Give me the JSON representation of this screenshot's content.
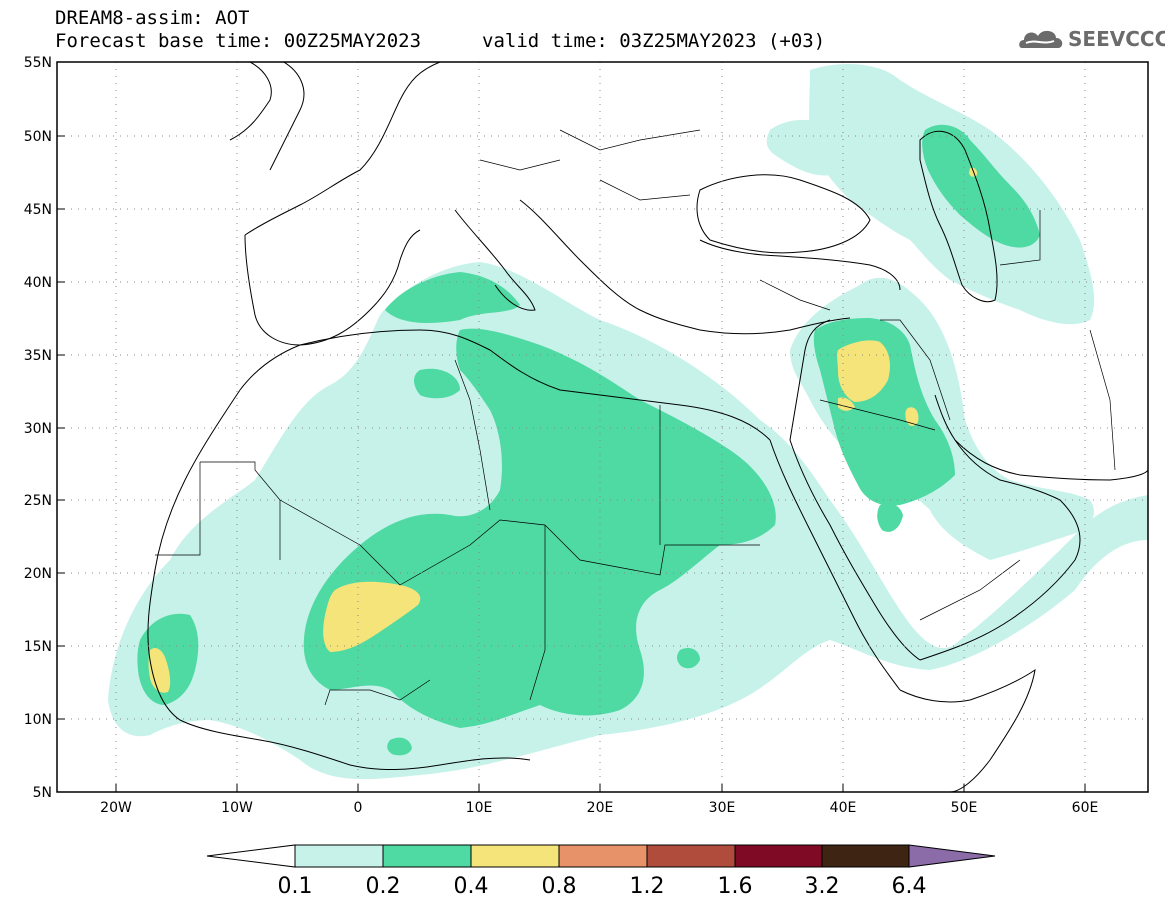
{
  "header": {
    "title": "DREAM8-assim: AOT",
    "base_time": "Forecast base time: 00Z25MAY2023",
    "valid_time": "valid time: 03Z25MAY2023 (+03)",
    "logo_text": "SEEVCCC"
  },
  "map": {
    "lat_labels": [
      "55N",
      "50N",
      "45N",
      "40N",
      "35N",
      "30N",
      "25N",
      "20N",
      "15N",
      "10N",
      "5N"
    ],
    "lon_labels": [
      "20W",
      "10W",
      "0",
      "10E",
      "20E",
      "30E",
      "40E",
      "50E",
      "60E"
    ],
    "field": "AOT"
  },
  "colorbar": {
    "labels": [
      "0.1",
      "0.2",
      "0.4",
      "0.8",
      "1.2",
      "1.6",
      "3.2",
      "6.4"
    ],
    "colors": [
      "#c6f2ea",
      "#4fd9a3",
      "#f4e47a",
      "#e8926a",
      "#b04c3c",
      "#7e0a25",
      "#3e2413",
      "#8b6ca8"
    ]
  }
}
